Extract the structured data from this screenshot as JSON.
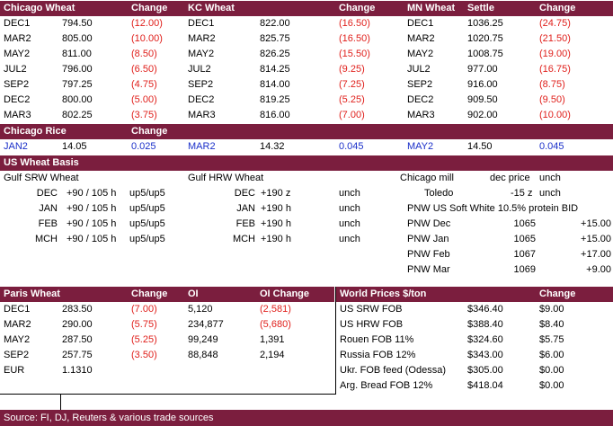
{
  "top_table": {
    "headers": [
      "Chicago Wheat",
      "Change",
      "KC Wheat",
      "Change",
      "MN Wheat",
      "Settle",
      "Change"
    ],
    "rows": [
      [
        "DEC1",
        "794.50",
        "(12.00)",
        "DEC1",
        "822.00",
        "(16.50)",
        "DEC1",
        "1036.25",
        "(24.75)"
      ],
      [
        "MAR2",
        "805.00",
        "(10.00)",
        "MAR2",
        "825.75",
        "(16.50)",
        "MAR2",
        "1020.75",
        "(21.50)"
      ],
      [
        "MAY2",
        "811.00",
        "(8.50)",
        "MAY2",
        "826.25",
        "(15.50)",
        "MAY2",
        "1008.75",
        "(19.00)"
      ],
      [
        "JUL2",
        "796.00",
        "(6.50)",
        "JUL2",
        "814.25",
        "(9.25)",
        "JUL2",
        "977.00",
        "(16.75)"
      ],
      [
        "SEP2",
        "797.25",
        "(4.75)",
        "SEP2",
        "814.00",
        "(7.25)",
        "SEP2",
        "916.00",
        "(8.75)"
      ],
      [
        "DEC2",
        "800.00",
        "(5.00)",
        "DEC2",
        "819.25",
        "(5.25)",
        "DEC2",
        "909.50",
        "(9.50)"
      ],
      [
        "MAR3",
        "802.25",
        "(3.75)",
        "MAR3",
        "816.00",
        "(7.00)",
        "MAR3",
        "902.00",
        "(10.00)"
      ]
    ]
  },
  "rice": {
    "header": "Chicago Rice",
    "change_header": "Change",
    "row": [
      "JAN2",
      "14.05",
      "0.025",
      "MAR2",
      "14.32",
      "0.045",
      "MAY2",
      "14.50",
      "0.045"
    ]
  },
  "basis": {
    "header": "US Wheat Basis",
    "gulf_srw": "Gulf SRW Wheat",
    "gulf_hrw": "Gulf HRW Wheat",
    "chicago_mill": "Chicago mill",
    "dec_price": "dec price",
    "unch_label": "unch",
    "srw_rows": [
      [
        "DEC",
        "+90 / 105 h",
        "up5/up5"
      ],
      [
        "JAN",
        "+90 / 105 h",
        "up5/up5"
      ],
      [
        "FEB",
        "+90 / 105 h",
        "up5/up5"
      ],
      [
        "MCH",
        "+90 / 105 h",
        "up5/up5"
      ]
    ],
    "hrw_rows": [
      [
        "DEC",
        "+190 z",
        "unch"
      ],
      [
        "JAN",
        "+190 h",
        "unch"
      ],
      [
        "FEB",
        "+190 h",
        "unch"
      ],
      [
        "MCH",
        "+190 h",
        "unch"
      ]
    ],
    "toledo": [
      "Toledo",
      "-15 z",
      "unch"
    ],
    "pnw_header": "PNW US Soft White 10.5% protein BID",
    "pnw_rows": [
      [
        "PNW Dec",
        "1065",
        "+15.00"
      ],
      [
        "PNW Jan",
        "1065",
        "+15.00"
      ],
      [
        "PNW Feb",
        "1067",
        "+17.00"
      ],
      [
        "PNW Mar",
        "1069",
        "+9.00"
      ]
    ]
  },
  "paris": {
    "headers": [
      "Paris Wheat",
      "Change",
      "OI",
      "OI Change"
    ],
    "rows": [
      [
        "DEC1",
        "283.50",
        "(7.00)",
        "5,120",
        "(2,581)"
      ],
      [
        "MAR2",
        "290.00",
        "(5.75)",
        "234,877",
        "(5,680)"
      ],
      [
        "MAY2",
        "287.50",
        "(5.25)",
        "99,249",
        "1,391"
      ],
      [
        "SEP2",
        "257.75",
        "(3.50)",
        "88,848",
        "2,194"
      ]
    ],
    "eur": [
      "EUR",
      "1.1310"
    ]
  },
  "world": {
    "headers": [
      "World Prices $/ton",
      "Change"
    ],
    "rows": [
      [
        "US SRW FOB",
        "$346.40",
        "$9.00"
      ],
      [
        "US HRW FOB",
        "$388.40",
        "$8.40"
      ],
      [
        "Rouen FOB 11%",
        "$324.60",
        "$5.75"
      ],
      [
        "Russia FOB 12%",
        "$343.00",
        "$6.00"
      ],
      [
        "Ukr. FOB feed (Odessa)",
        "$305.00",
        "$0.00"
      ],
      [
        "Arg. Bread FOB 12%",
        "$418.04",
        "$0.00"
      ]
    ]
  },
  "footer": {
    "source": "Source: FI, DJ, Reuters & various trade sources"
  },
  "colors": {
    "header_bg": "#7b1e3e",
    "negative": "#e0201c",
    "rice_blue": "#1a2fc9"
  }
}
